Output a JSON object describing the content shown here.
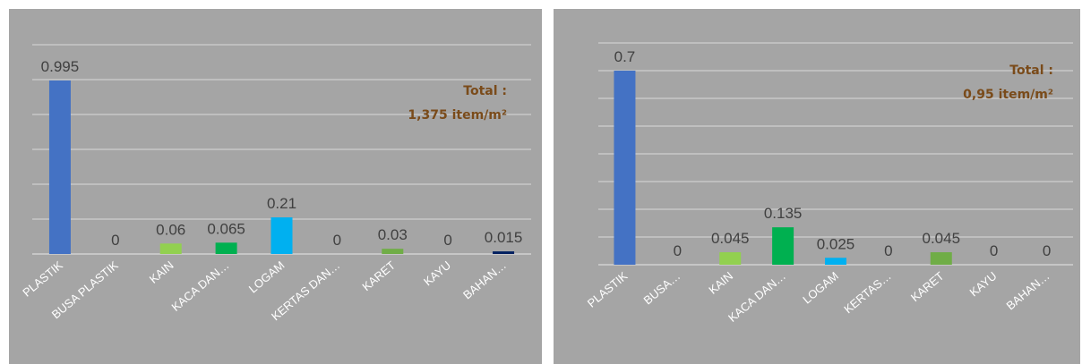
{
  "chart_data": [
    {
      "type": "bar",
      "categories": [
        "PLASTIK",
        "BUSA PLASTIK",
        "KAIN",
        "KACA DAN…",
        "LOGAM",
        "KERTAS DAN…",
        "KARET",
        "KAYU",
        "BAHAN…"
      ],
      "values": [
        0.995,
        0,
        0.06,
        0.065,
        0.21,
        0,
        0.03,
        0,
        0.015
      ],
      "value_labels": [
        "0.995",
        "0",
        "0.06",
        "0.065",
        "0.21",
        "0",
        "0.03",
        "0",
        "0.015"
      ],
      "colors": [
        "#4472c4",
        "#4472c4",
        "#92d050",
        "#00b050",
        "#00b0f0",
        "#c55a11",
        "#70ad47",
        "#7f6000",
        "#002060"
      ],
      "ylim": [
        0,
        1.2
      ],
      "grid": true,
      "annotation": [
        "Total :",
        "1,375 item/m²"
      ]
    },
    {
      "type": "bar",
      "categories": [
        "PLASTIK",
        "BUSA…",
        "KAIN",
        "KACA DAN…",
        "LOGAM",
        "KERTAS…",
        "KARET",
        "KAYU",
        "BAHAN…"
      ],
      "values": [
        0.7,
        0,
        0.045,
        0.135,
        0.025,
        0,
        0.045,
        0,
        0
      ],
      "value_labels": [
        "0.7",
        "0",
        "0.045",
        "0.135",
        "0.025",
        "0",
        "0.045",
        "0",
        "0"
      ],
      "colors": [
        "#4472c4",
        "#4472c4",
        "#92d050",
        "#00b050",
        "#00b0f0",
        "#c55a11",
        "#70ad47",
        "#7f6000",
        "#002060"
      ],
      "ylim": [
        0,
        0.8
      ],
      "grid": true,
      "annotation": [
        "Total :",
        "0,95 item/m²"
      ]
    }
  ]
}
